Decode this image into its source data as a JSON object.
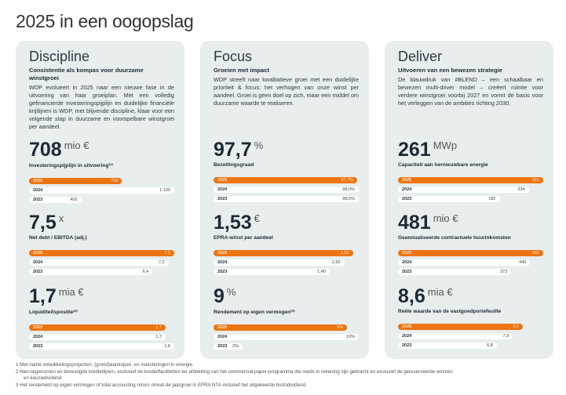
{
  "title": "2025 in een oogopslag",
  "colors": {
    "accent": "#ec7512",
    "panel": "#e8eded"
  },
  "panels": [
    {
      "heading": "Discipline",
      "subheading": "Consistentie als kompas voor duurzame winstgroei",
      "body": "WDP evolueert in 2025 naar een nieuwe fase in de uitvoering van haar groeiplan. Met een volledig gefinancierde investeringspijplijn en duidelijke financiële krijtlijnen is WDP, met blijvende discipline, klaar voor een volgende stap in duurzame en voorspelbare winstgroei per aandeel.",
      "metrics": [
        {
          "value": "708",
          "unit": "mio €",
          "label": "Investeringspijplijn in uitvoering⁽¹⁾",
          "bars": [
            {
              "year": "2025",
              "value": "708",
              "fill": 0.64
            },
            {
              "year": "2024",
              "value": "1.100",
              "fill": 1.0
            },
            {
              "year": "2023",
              "value": "402",
              "fill": 0.36
            }
          ]
        },
        {
          "value": "7,5",
          "unit": "x",
          "label": "Net debt / EBITDA (adj.)",
          "bars": [
            {
              "year": "2025",
              "value": "7,5",
              "fill": 1.0
            },
            {
              "year": "2024",
              "value": "7,2",
              "fill": 0.96
            },
            {
              "year": "2023",
              "value": "6,4",
              "fill": 0.85
            }
          ]
        },
        {
          "value": "1,7",
          "unit": "mia €",
          "label": "Liquiditeitspositie⁽²⁾",
          "bars": [
            {
              "year": "2025",
              "value": "1,7",
              "fill": 0.94
            },
            {
              "year": "2024",
              "value": "1,7",
              "fill": 0.94
            },
            {
              "year": "2023",
              "value": "1,8",
              "fill": 1.0
            }
          ]
        }
      ]
    },
    {
      "heading": "Focus",
      "subheading": "Groeien met impact",
      "body": "WDP streeft naar kwalitatieve groei met een duidelijke prioriteit & focus: het verhogen van onze winst per aandeel. Groei is geen doel op zich, maar een middel om duurzame waarde te realiseren.",
      "metrics": [
        {
          "value": "97,7",
          "unit": "%",
          "label": "Bezettingsgraad",
          "bars": [
            {
              "year": "2025",
              "value": "97,7%",
              "fill": 0.99
            },
            {
              "year": "2024",
              "value": "98,0%",
              "fill": 1.0
            },
            {
              "year": "2023",
              "value": "98,5%",
              "fill": 1.0
            }
          ]
        },
        {
          "value": "1,53",
          "unit": "€",
          "label": "EPRA-winst per aandeel",
          "bars": [
            {
              "year": "2025",
              "value": "1,53",
              "fill": 0.96
            },
            {
              "year": "2024",
              "value": "1,50",
              "fill": 0.9
            },
            {
              "year": "2023",
              "value": "1,40",
              "fill": 0.8
            }
          ]
        },
        {
          "value": "9",
          "unit": "%",
          "label": "Rendement op eigen vermogen⁽³⁾",
          "bars": [
            {
              "year": "2025",
              "value": "9%",
              "fill": 0.92
            },
            {
              "year": "2024",
              "value": "10%",
              "fill": 1.0
            },
            {
              "year": "2023",
              "value": "2%",
              "fill": 0.2
            }
          ]
        }
      ]
    },
    {
      "heading": "Deliver",
      "subheading": "Uitvoeren van een bewezen strategie",
      "body": "De blauwdruk van #BLEND – een schaalbaar en bewezen multi-driver model – creëert ruimte voor verdere winstgroei voorbij 2027 en vormt de basis voor het verleggen van de ambities richting 2030.",
      "metrics": [
        {
          "value": "261",
          "unit": "MWp",
          "label": "Capaciteit aan hernieuwbare energie",
          "bars": [
            {
              "year": "2025",
              "value": "261",
              "fill": 1.0
            },
            {
              "year": "2024",
              "value": "234",
              "fill": 0.9
            },
            {
              "year": "2023",
              "value": "182",
              "fill": 0.7
            }
          ]
        },
        {
          "value": "481",
          "unit": "mio €",
          "label": "Geannualiseerde contractuele huurinkomsten",
          "bars": [
            {
              "year": "2025",
              "value": "481",
              "fill": 1.0
            },
            {
              "year": "2024",
              "value": "440",
              "fill": 0.91
            },
            {
              "year": "2023",
              "value": "373",
              "fill": 0.78
            }
          ]
        },
        {
          "value": "8,6",
          "unit": "mia €",
          "label": "Reële waarde van de vastgoedportefeuille",
          "bars": [
            {
              "year": "2025",
              "value": "8,6",
              "fill": 0.86
            },
            {
              "year": "2024",
              "value": "7,9",
              "fill": 0.79
            },
            {
              "year": "2023",
              "value": "6,8",
              "fill": 0.68
            }
          ]
        }
      ]
    }
  ],
  "footnotes": [
    "1  Met name ontwikkelingsprojecten, (grond)aankopen, en investeringen in energie.",
    "2  Niet-opgenomen en bevestigde kredietlijnen, exclusief de kredietfaciliteiten ter afdekking van het commercial paper-programma die reeds in rekening zijn gebracht en exclusief de gereserveerde winsten en keuzedividend.",
    "3  Het rendement op eigen vermogen of total accounting return omvat de jaargroei in EPRA NTA inclusief het uitgekeerde brutodividend."
  ]
}
